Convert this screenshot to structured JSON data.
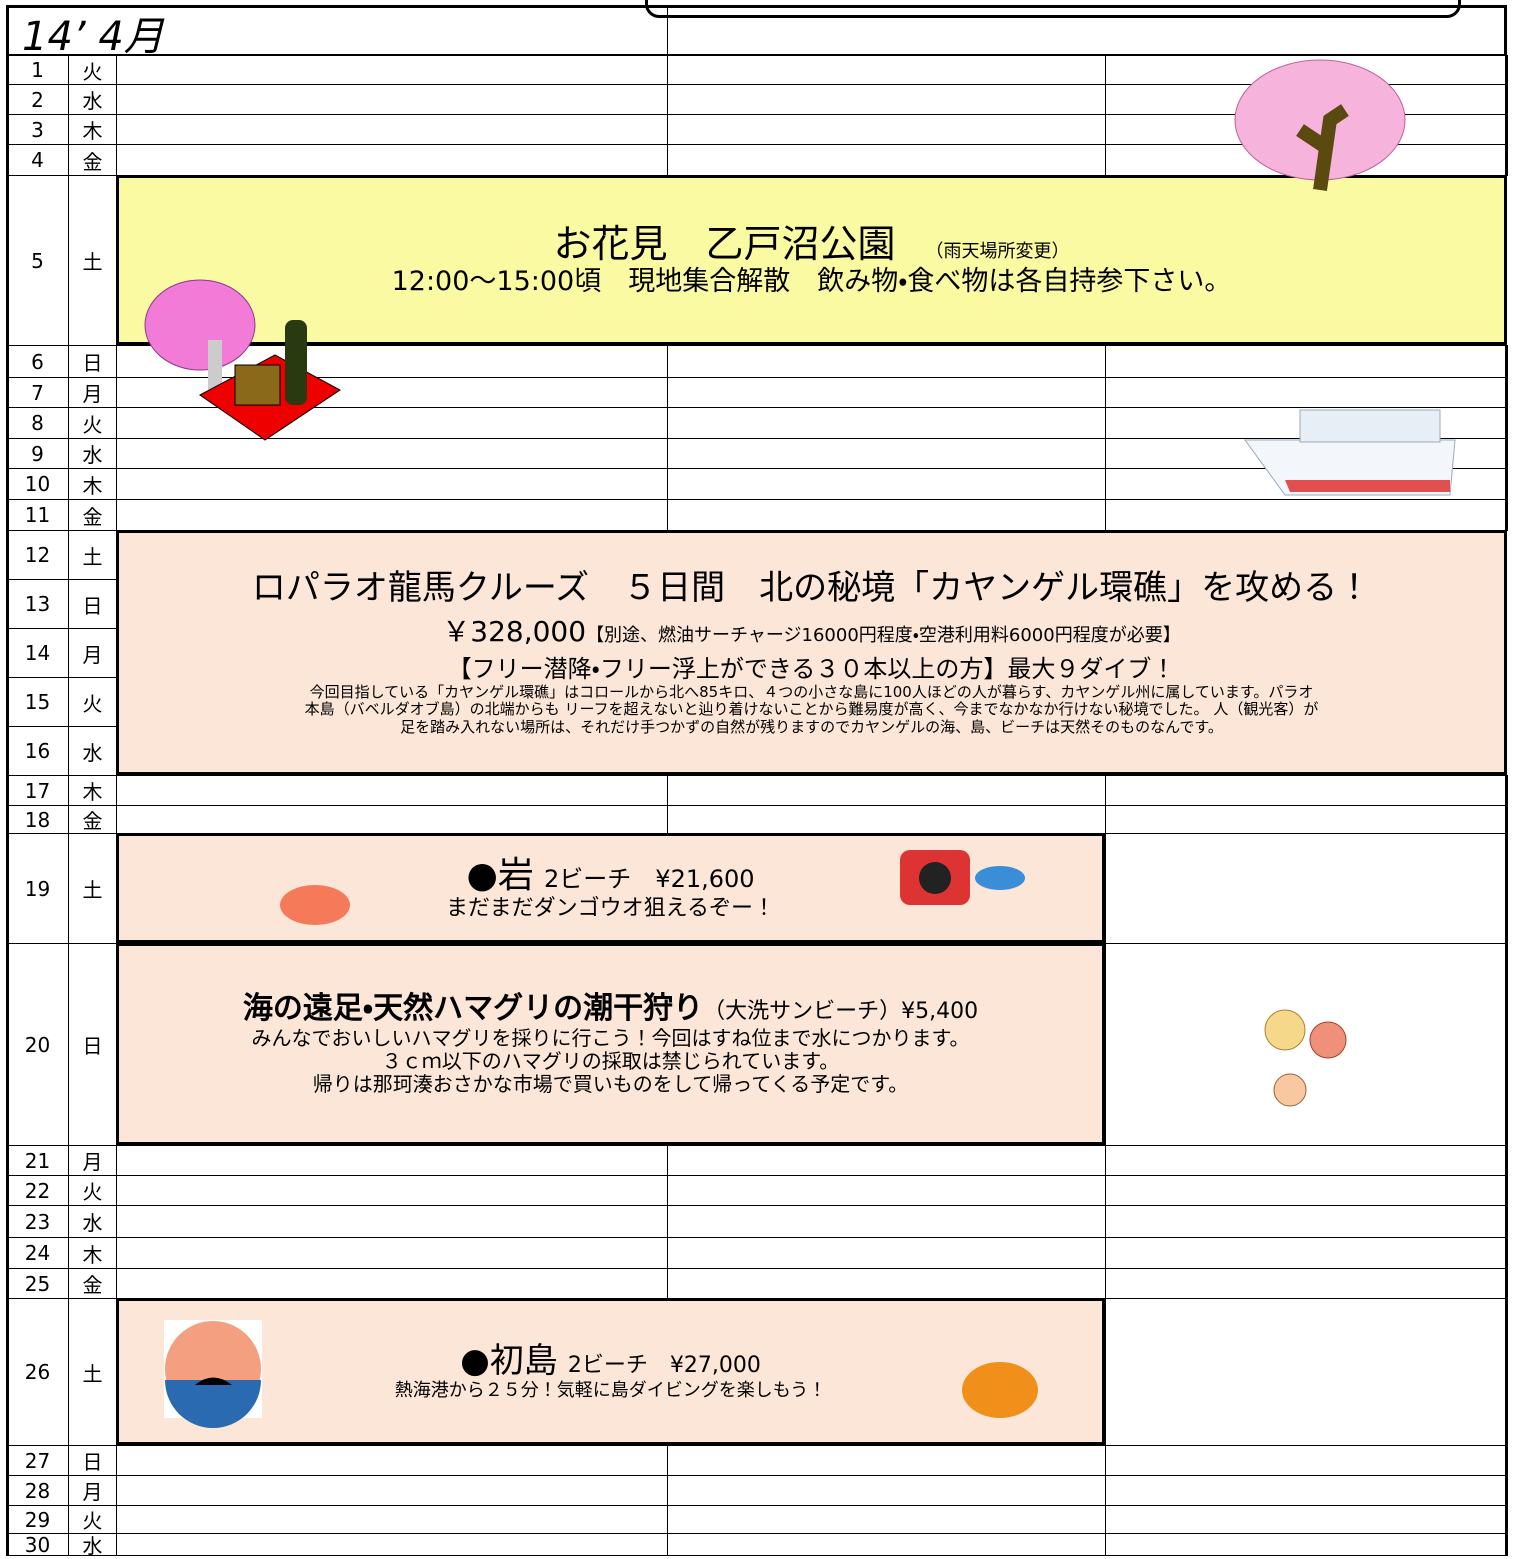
{
  "header": {
    "title": "14’ 4月"
  },
  "days": [
    {
      "day": 1,
      "weekday": "火"
    },
    {
      "day": 2,
      "weekday": "水"
    },
    {
      "day": 3,
      "weekday": "木"
    },
    {
      "day": 4,
      "weekday": "金"
    },
    {
      "day": 5,
      "weekday": "土"
    },
    {
      "day": 6,
      "weekday": "日"
    },
    {
      "day": 7,
      "weekday": "月"
    },
    {
      "day": 8,
      "weekday": "火"
    },
    {
      "day": 9,
      "weekday": "水"
    },
    {
      "day": 10,
      "weekday": "木"
    },
    {
      "day": 11,
      "weekday": "金"
    },
    {
      "day": 12,
      "weekday": "土"
    },
    {
      "day": 13,
      "weekday": "日"
    },
    {
      "day": 14,
      "weekday": "月"
    },
    {
      "day": 15,
      "weekday": "火"
    },
    {
      "day": 16,
      "weekday": "水"
    },
    {
      "day": 17,
      "weekday": "木"
    },
    {
      "day": 18,
      "weekday": "金"
    },
    {
      "day": 19,
      "weekday": "土"
    },
    {
      "day": 20,
      "weekday": "日"
    },
    {
      "day": 21,
      "weekday": "月"
    },
    {
      "day": 22,
      "weekday": "火"
    },
    {
      "day": 23,
      "weekday": "水"
    },
    {
      "day": 24,
      "weekday": "木"
    },
    {
      "day": 25,
      "weekday": "金"
    },
    {
      "day": 26,
      "weekday": "土"
    },
    {
      "day": 27,
      "weekday": "日"
    },
    {
      "day": 28,
      "weekday": "月"
    },
    {
      "day": 29,
      "weekday": "火"
    },
    {
      "day": 30,
      "weekday": "水"
    }
  ],
  "events": [
    {
      "title": "お花見　乙戸沼公園",
      "note": "（雨天場所変更）",
      "lines": [
        "12:00～15:00頃　現地集合解散　飲み物・食べ物は各自持参下さい。"
      ]
    },
    {
      "title": "ロパラオ龍馬クルーズ　５日間　北の秘境「カヤンゲル環礁」を攻める！",
      "price": "￥328,000",
      "note": "【別途、燃油サーチャージ16000円程度・空港利用料6000円程度が必要】",
      "lines": [
        "【フリー潜降・フリー浮上ができる３０本以上の方】最大９ダイブ！",
        "今回目指している「カヤンゲル環礁」はコロールから北へ85キロ、４つの小さな島に100人ほどの人が暮らす、カヤンゲル州に属しています。パラオ",
        "本島（バベルダオブ島）の北端からも リーフを超えないと辿り着けないことから難易度が高く、今までなかなか行けない秘境でした。 人（観光客）が",
        "足を踏み入れない場所は、それだけ手つかずの自然が残りますのでカヤンゲルの海、島、ビーチは天然そのものなんです。"
      ]
    },
    {
      "title": "●岩",
      "note": "2ビーチ　¥21,600",
      "lines": [
        "まだまだダンゴウオ狙えるぞー！"
      ]
    },
    {
      "title": "海の遠足・天然ハマグリの潮干狩り",
      "note": "（大洗サンビーチ）¥5,400",
      "lines": [
        "みんなでおいしいハマグリを採りに行こう！今回はすね位まで水につかります。",
        "３ｃｍ以下のハマグリの採取は禁じられています。",
        "帰りは那珂湊おさかな市場で買いものをして帰ってくる予定です。"
      ]
    },
    {
      "title": "●初島",
      "note": "2ビーチ　¥27,000",
      "lines": [
        "熱海港から２５分！気軽に島ダイビングを楽しもう！"
      ]
    }
  ]
}
